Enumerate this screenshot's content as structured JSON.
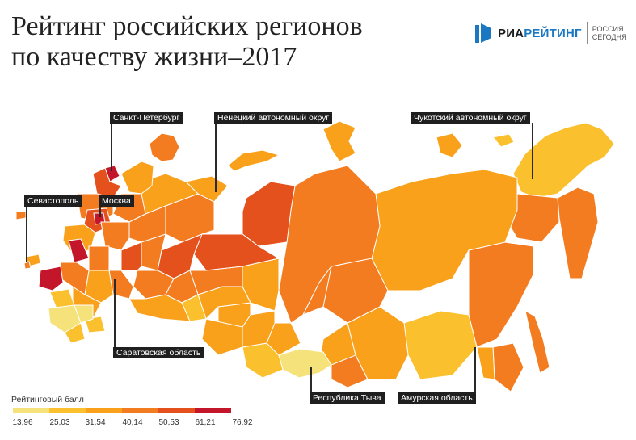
{
  "title": {
    "line1": "Рейтинг российских регионов",
    "line2": "по качеству жизни–2017"
  },
  "logo": {
    "ria": "РИА",
    "rating": "РЕЙТИНГ",
    "sub1": "РОССИЯ",
    "sub2": "СЕГОДНЯ"
  },
  "callouts": {
    "spb": "Санкт-Петербург",
    "nenets": "Ненецкий автономный округ",
    "chukotka": "Чукотский автономный округ",
    "sevastopol": "Севастополь",
    "moscow": "Москва",
    "saratov": "Саратовская область",
    "tyva": "Республика Тыва",
    "amur": "Амурская область"
  },
  "legend": {
    "title": "Рейтинговый балл",
    "ticks": [
      "13,96",
      "25,03",
      "31,54",
      "40,14",
      "50,53",
      "61,21",
      "76,92"
    ],
    "colors": [
      "#f6e27a",
      "#fbc02d",
      "#f9a11b",
      "#f47c20",
      "#e4511d",
      "#c4162a"
    ]
  }
}
